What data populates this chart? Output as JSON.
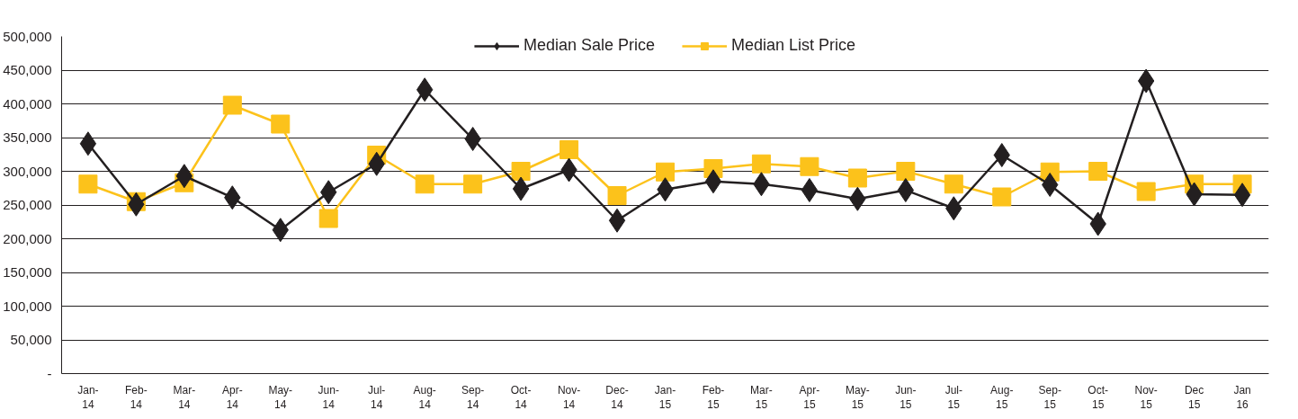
{
  "chart_data": {
    "type": "line",
    "categories": [
      "Jan-\n14",
      "Feb-\n14",
      "Mar-\n14",
      "Apr-\n14",
      "May-\n14",
      "Jun-\n14",
      "Jul-\n14",
      "Aug-\n14",
      "Sep-\n14",
      "Oct-\n14",
      "Nov-\n14",
      "Dec-\n14",
      "Jan-\n15",
      "Feb-\n15",
      "Mar-\n15",
      "Apr-\n15",
      "May-\n15",
      "Jun-\n15",
      "Jul-\n15",
      "Aug-\n15",
      "Sep-\n15",
      "Oct-\n15",
      "Nov-\n15",
      "Dec\n15",
      "Jan\n16"
    ],
    "series": [
      {
        "name": "Median Sale Price",
        "color": "#231f20",
        "marker": "diamond",
        "values": [
          341000,
          251000,
          293000,
          261000,
          213000,
          269000,
          311000,
          421000,
          348000,
          274000,
          302000,
          227000,
          273000,
          285000,
          281000,
          272000,
          259000,
          272000,
          245000,
          324000,
          280000,
          222000,
          434000,
          266000,
          265000
        ]
      },
      {
        "name": "Median List Price",
        "color": "#fcc21b",
        "marker": "square",
        "values": [
          281000,
          255000,
          283000,
          398000,
          370000,
          230000,
          324000,
          281000,
          281000,
          300000,
          332000,
          264000,
          299000,
          304000,
          311000,
          307000,
          290000,
          300000,
          281000,
          262000,
          299000,
          300000,
          270000,
          281000,
          281000
        ]
      }
    ],
    "ylim": [
      0,
      500000
    ],
    "yticks": [
      {
        "value": 0,
        "label": "-"
      },
      {
        "value": 50000,
        "label": "50,000"
      },
      {
        "value": 100000,
        "label": "100,000"
      },
      {
        "value": 150000,
        "label": "150,000"
      },
      {
        "value": 200000,
        "label": "200,000"
      },
      {
        "value": 250000,
        "label": "250,000"
      },
      {
        "value": 300000,
        "label": "300,000"
      },
      {
        "value": 350000,
        "label": "350,000"
      },
      {
        "value": 400000,
        "label": "400,000"
      },
      {
        "value": 450000,
        "label": "450,000"
      },
      {
        "value": 500000,
        "label": "500,000"
      }
    ],
    "grid": "y",
    "legend": "top",
    "line_style": "solid"
  }
}
